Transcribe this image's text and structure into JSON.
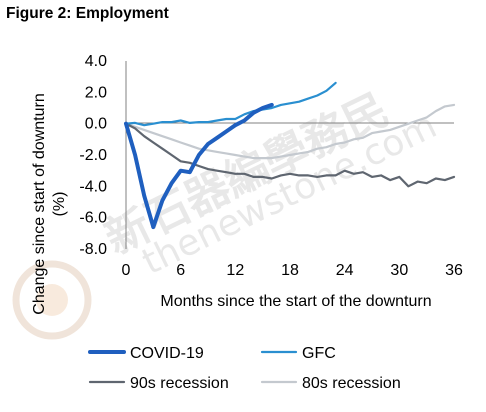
{
  "figure_title": "Figure 2: Employment",
  "watermark": {
    "text_cn": "新石器編學務民",
    "text_url": "thenewstone.com"
  },
  "chart_data": {
    "type": "line",
    "title": "",
    "xlabel": "Months since the start of the downturn",
    "ylabel": "Change since start of downturn (%)",
    "ylabel_lines": [
      "Change since start of downturn",
      "(%)"
    ],
    "xlim": [
      0,
      36
    ],
    "ylim": [
      -8.0,
      4.0
    ],
    "x_ticks": [
      0,
      6,
      12,
      18,
      24,
      30,
      36
    ],
    "y_ticks": [
      4.0,
      2.0,
      0.0,
      -2.0,
      -4.0,
      -6.0,
      -8.0
    ],
    "y_tick_labels": [
      "4.0",
      "2.0",
      "0.0",
      "-2.0",
      "-4.0",
      "-6.0",
      "-8.0"
    ],
    "grid": false,
    "legend_position": "bottom",
    "series": [
      {
        "name": "COVID-19",
        "color": "#1f5fbf",
        "width": 4,
        "x": [
          0,
          1,
          2,
          3,
          4,
          5,
          6,
          7,
          8,
          9,
          10,
          11,
          12,
          13,
          14,
          15,
          16
        ],
        "y": [
          0.0,
          -2.0,
          -4.6,
          -6.6,
          -4.9,
          -3.8,
          -3.0,
          -3.1,
          -2.0,
          -1.3,
          -0.9,
          -0.5,
          -0.1,
          0.2,
          0.7,
          1.0,
          1.2
        ]
      },
      {
        "name": "GFC",
        "color": "#2a8fd0",
        "width": 2.2,
        "x": [
          0,
          1,
          2,
          3,
          4,
          5,
          6,
          7,
          8,
          9,
          10,
          11,
          12,
          13,
          14,
          15,
          16,
          17,
          18,
          19,
          20,
          21,
          22,
          23
        ],
        "y": [
          0.0,
          0.05,
          -0.1,
          0.0,
          0.1,
          0.1,
          0.2,
          0.05,
          0.1,
          0.1,
          0.2,
          0.3,
          0.3,
          0.6,
          0.8,
          0.9,
          1.0,
          1.2,
          1.3,
          1.4,
          1.6,
          1.8,
          2.1,
          2.6
        ]
      },
      {
        "name": "90s recession",
        "color": "#5f6670",
        "width": 2.2,
        "x": [
          0,
          1,
          2,
          3,
          4,
          5,
          6,
          7,
          8,
          9,
          10,
          11,
          12,
          13,
          14,
          15,
          16,
          17,
          18,
          19,
          20,
          21,
          22,
          23,
          24,
          25,
          26,
          27,
          28,
          29,
          30,
          31,
          32,
          33,
          34,
          35,
          36
        ],
        "y": [
          0.0,
          -0.3,
          -0.8,
          -1.2,
          -1.6,
          -2.0,
          -2.4,
          -2.5,
          -2.7,
          -2.9,
          -3.0,
          -3.1,
          -3.2,
          -3.2,
          -3.4,
          -3.4,
          -3.5,
          -3.3,
          -3.2,
          -3.3,
          -3.3,
          -3.4,
          -3.3,
          -3.3,
          -3.0,
          -3.2,
          -3.1,
          -3.4,
          -3.3,
          -3.6,
          -3.4,
          -4.0,
          -3.7,
          -3.8,
          -3.5,
          -3.6,
          -3.4
        ]
      },
      {
        "name": "80s recession",
        "color": "#c4c9cf",
        "width": 2.2,
        "x": [
          0,
          1,
          2,
          3,
          4,
          5,
          6,
          7,
          8,
          9,
          10,
          11,
          12,
          13,
          14,
          15,
          16,
          17,
          18,
          19,
          20,
          21,
          22,
          23,
          24,
          25,
          26,
          27,
          28,
          29,
          30,
          31,
          32,
          33,
          34,
          35,
          36
        ],
        "y": [
          0.0,
          -0.2,
          -0.4,
          -0.6,
          -0.8,
          -1.0,
          -1.2,
          -1.4,
          -1.6,
          -1.7,
          -1.8,
          -1.9,
          -2.0,
          -2.1,
          -2.2,
          -2.2,
          -2.2,
          -2.1,
          -2.0,
          -1.9,
          -1.8,
          -1.6,
          -1.5,
          -1.3,
          -1.2,
          -1.0,
          -0.9,
          -0.6,
          -0.5,
          -0.4,
          -0.2,
          0.0,
          0.2,
          0.4,
          0.8,
          1.1,
          1.2
        ]
      }
    ]
  }
}
